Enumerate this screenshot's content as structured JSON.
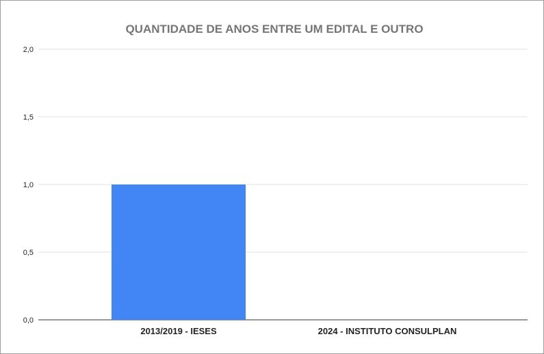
{
  "chart_data": {
    "type": "bar",
    "title": "QUANTIDADE DE ANOS ENTRE UM EDITAL E OUTRO",
    "xlabel": "",
    "ylabel": "",
    "categories": [
      "2013/2019 - IESES",
      "2024 - INSTITUTO CONSULPLAN"
    ],
    "values": [
      1,
      0
    ],
    "ylim": [
      0,
      2
    ],
    "yticks": [
      "0,0",
      "0,5",
      "1,0",
      "1,5",
      "2,0"
    ],
    "ytick_values": [
      0,
      0.5,
      1,
      1.5,
      2
    ],
    "grid": true,
    "legend": "none",
    "colors": {
      "bar": "#4285f4",
      "title": "#757575",
      "grid": "#e0e0e0",
      "axis": "#333333"
    }
  }
}
